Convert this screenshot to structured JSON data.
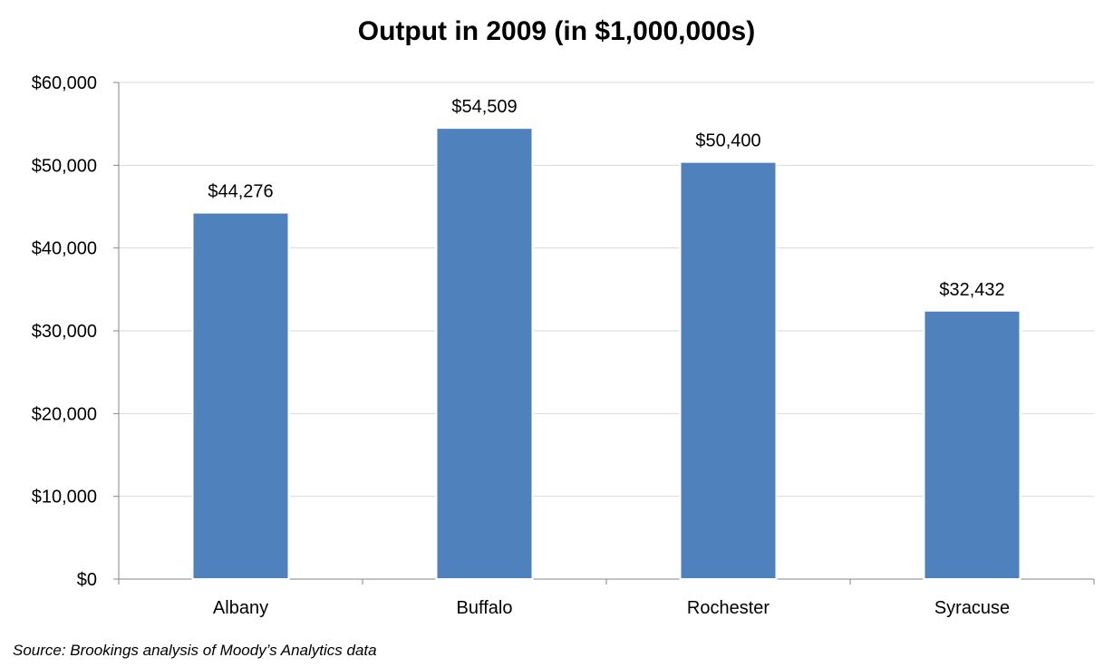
{
  "chart_data": {
    "type": "bar",
    "title": "Output in 2009 (in $1,000,000s)",
    "categories": [
      "Albany",
      "Buffalo",
      "Rochester",
      "Syracuse"
    ],
    "values": [
      44276,
      54509,
      50400,
      32432
    ],
    "data_labels": [
      "$44,276",
      "$54,509",
      "$50,400",
      "$32,432"
    ],
    "y_ticks": [
      "$0",
      "$10,000",
      "$20,000",
      "$30,000",
      "$40,000",
      "$50,000",
      "$60,000"
    ],
    "y_tick_values": [
      0,
      10000,
      20000,
      30000,
      40000,
      50000,
      60000
    ],
    "ylim": [
      0,
      60000
    ],
    "xlabel": "",
    "ylabel": "",
    "grid": true,
    "legend": "none",
    "bar_color": "#4f81bd",
    "grid_color": "#d9d9d9",
    "axis_color": "#868686"
  },
  "source": "Source: Brookings analysis of Moody’s Analytics data"
}
